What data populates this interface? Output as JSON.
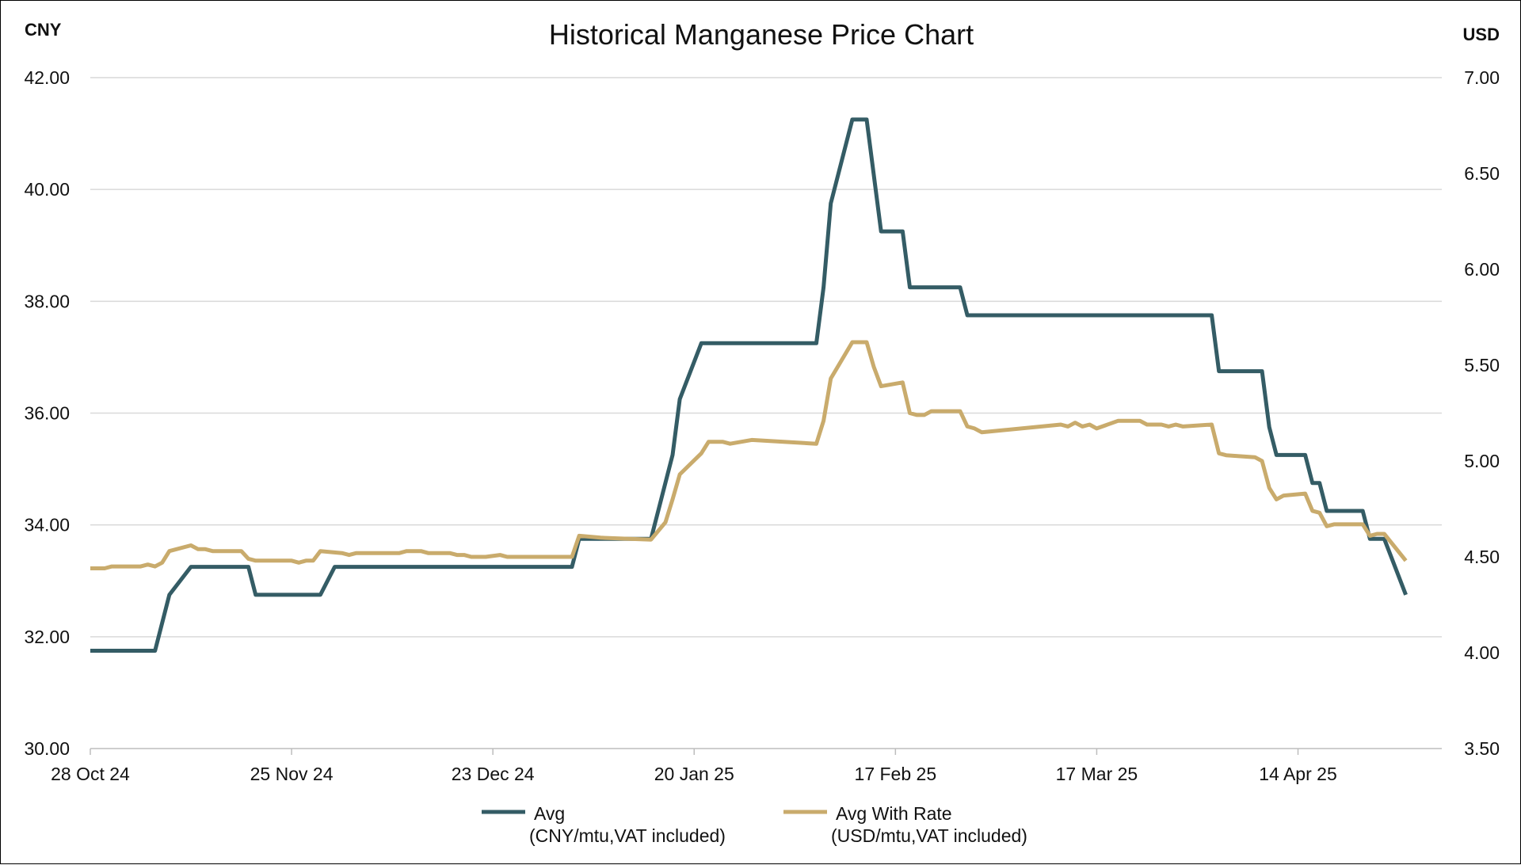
{
  "chart_data": {
    "type": "line",
    "title": "Historical Manganese Price Chart",
    "left_axis": {
      "unit_label": "CNY",
      "ylim": [
        30,
        42
      ],
      "ticks": [
        "30.00",
        "32.00",
        "34.00",
        "36.00",
        "38.00",
        "40.00",
        "42.00"
      ]
    },
    "right_axis": {
      "unit_label": "USD",
      "ylim": [
        3.5,
        7.0
      ],
      "ticks": [
        "3.50",
        "4.00",
        "4.50",
        "5.00",
        "5.50",
        "6.00",
        "6.50",
        "7.00"
      ]
    },
    "x_axis": {
      "range": [
        "2024-10-28",
        "2025-05-04"
      ],
      "ticks": [
        {
          "date": "2024-10-28",
          "label": "28 Oct 24"
        },
        {
          "date": "2024-11-25",
          "label": "25 Nov 24"
        },
        {
          "date": "2024-12-23",
          "label": "23 Dec 24"
        },
        {
          "date": "2025-01-20",
          "label": "20 Jan 25"
        },
        {
          "date": "2025-02-17",
          "label": "17 Feb 25"
        },
        {
          "date": "2025-03-17",
          "label": "17 Mar 25"
        },
        {
          "date": "2025-04-14",
          "label": "14 Apr 25"
        }
      ]
    },
    "grid": true,
    "legend_position": "bottom",
    "series": [
      {
        "name": "Avg",
        "sublabel": "(CNY/mtu,VAT included)",
        "axis": "left",
        "color": "#345c65",
        "points": [
          [
            "2024-10-28",
            31.75
          ],
          [
            "2024-11-06",
            31.75
          ],
          [
            "2024-11-08",
            32.75
          ],
          [
            "2024-11-11",
            33.25
          ],
          [
            "2024-11-19",
            33.25
          ],
          [
            "2024-11-20",
            32.75
          ],
          [
            "2024-11-29",
            32.75
          ],
          [
            "2024-12-01",
            33.25
          ],
          [
            "2025-01-03",
            33.25
          ],
          [
            "2025-01-04",
            33.75
          ],
          [
            "2025-01-14",
            33.75
          ],
          [
            "2025-01-17",
            35.25
          ],
          [
            "2025-01-18",
            36.25
          ],
          [
            "2025-01-21",
            37.25
          ],
          [
            "2025-02-06",
            37.25
          ],
          [
            "2025-02-07",
            38.25
          ],
          [
            "2025-02-08",
            39.75
          ],
          [
            "2025-02-11",
            41.25
          ],
          [
            "2025-02-13",
            41.25
          ],
          [
            "2025-02-15",
            39.25
          ],
          [
            "2025-02-18",
            39.25
          ],
          [
            "2025-02-19",
            38.25
          ],
          [
            "2025-02-26",
            38.25
          ],
          [
            "2025-02-27",
            37.75
          ],
          [
            "2025-04-02",
            37.75
          ],
          [
            "2025-04-03",
            36.75
          ],
          [
            "2025-04-09",
            36.75
          ],
          [
            "2025-04-10",
            35.75
          ],
          [
            "2025-04-11",
            35.25
          ],
          [
            "2025-04-15",
            35.25
          ],
          [
            "2025-04-16",
            34.75
          ],
          [
            "2025-04-17",
            34.75
          ],
          [
            "2025-04-18",
            34.25
          ],
          [
            "2025-04-23",
            34.25
          ],
          [
            "2025-04-24",
            33.75
          ],
          [
            "2025-04-26",
            33.75
          ],
          [
            "2025-04-29",
            32.75
          ]
        ]
      },
      {
        "name": "Avg With Rate",
        "sublabel": "(USD/mtu,VAT included)",
        "axis": "right",
        "color": "#c9ab6c",
        "points": [
          [
            "2024-10-28",
            4.44
          ],
          [
            "2024-10-30",
            4.44
          ],
          [
            "2024-10-31",
            4.45
          ],
          [
            "2024-11-04",
            4.45
          ],
          [
            "2024-11-05",
            4.46
          ],
          [
            "2024-11-06",
            4.45
          ],
          [
            "2024-11-07",
            4.47
          ],
          [
            "2024-11-08",
            4.53
          ],
          [
            "2024-11-11",
            4.56
          ],
          [
            "2024-11-12",
            4.54
          ],
          [
            "2024-11-13",
            4.54
          ],
          [
            "2024-11-14",
            4.53
          ],
          [
            "2024-11-18",
            4.53
          ],
          [
            "2024-11-19",
            4.49
          ],
          [
            "2024-11-20",
            4.48
          ],
          [
            "2024-11-25",
            4.48
          ],
          [
            "2024-11-26",
            4.47
          ],
          [
            "2024-11-27",
            4.48
          ],
          [
            "2024-11-28",
            4.48
          ],
          [
            "2024-11-29",
            4.53
          ],
          [
            "2024-12-02",
            4.52
          ],
          [
            "2024-12-03",
            4.51
          ],
          [
            "2024-12-04",
            4.52
          ],
          [
            "2024-12-10",
            4.52
          ],
          [
            "2024-12-11",
            4.53
          ],
          [
            "2024-12-13",
            4.53
          ],
          [
            "2024-12-14",
            4.52
          ],
          [
            "2024-12-17",
            4.52
          ],
          [
            "2024-12-18",
            4.51
          ],
          [
            "2024-12-19",
            4.51
          ],
          [
            "2024-12-20",
            4.5
          ],
          [
            "2024-12-22",
            4.5
          ],
          [
            "2024-12-24",
            4.51
          ],
          [
            "2024-12-25",
            4.5
          ],
          [
            "2025-01-03",
            4.5
          ],
          [
            "2025-01-04",
            4.61
          ],
          [
            "2025-01-07",
            4.6
          ],
          [
            "2025-01-14",
            4.59
          ],
          [
            "2025-01-16",
            4.68
          ],
          [
            "2025-01-17",
            4.8
          ],
          [
            "2025-01-18",
            4.93
          ],
          [
            "2025-01-21",
            5.04
          ],
          [
            "2025-01-22",
            5.1
          ],
          [
            "2025-01-24",
            5.1
          ],
          [
            "2025-01-25",
            5.09
          ],
          [
            "2025-01-28",
            5.11
          ],
          [
            "2025-02-06",
            5.09
          ],
          [
            "2025-02-07",
            5.21
          ],
          [
            "2025-02-08",
            5.43
          ],
          [
            "2025-02-11",
            5.62
          ],
          [
            "2025-02-13",
            5.62
          ],
          [
            "2025-02-14",
            5.49
          ],
          [
            "2025-02-15",
            5.39
          ],
          [
            "2025-02-18",
            5.41
          ],
          [
            "2025-02-19",
            5.25
          ],
          [
            "2025-02-20",
            5.24
          ],
          [
            "2025-02-21",
            5.24
          ],
          [
            "2025-02-22",
            5.26
          ],
          [
            "2025-02-26",
            5.26
          ],
          [
            "2025-02-27",
            5.18
          ],
          [
            "2025-02-28",
            5.17
          ],
          [
            "2025-03-01",
            5.15
          ],
          [
            "2025-03-12",
            5.19
          ],
          [
            "2025-03-13",
            5.18
          ],
          [
            "2025-03-14",
            5.2
          ],
          [
            "2025-03-15",
            5.18
          ],
          [
            "2025-03-16",
            5.19
          ],
          [
            "2025-03-17",
            5.17
          ],
          [
            "2025-03-20",
            5.21
          ],
          [
            "2025-03-23",
            5.21
          ],
          [
            "2025-03-24",
            5.19
          ],
          [
            "2025-03-26",
            5.19
          ],
          [
            "2025-03-27",
            5.18
          ],
          [
            "2025-03-28",
            5.19
          ],
          [
            "2025-03-29",
            5.18
          ],
          [
            "2025-04-02",
            5.19
          ],
          [
            "2025-04-03",
            5.04
          ],
          [
            "2025-04-04",
            5.03
          ],
          [
            "2025-04-08",
            5.02
          ],
          [
            "2025-04-09",
            5.0
          ],
          [
            "2025-04-10",
            4.86
          ],
          [
            "2025-04-11",
            4.8
          ],
          [
            "2025-04-12",
            4.82
          ],
          [
            "2025-04-15",
            4.83
          ],
          [
            "2025-04-16",
            4.74
          ],
          [
            "2025-04-17",
            4.73
          ],
          [
            "2025-04-18",
            4.66
          ],
          [
            "2025-04-19",
            4.67
          ],
          [
            "2025-04-23",
            4.67
          ],
          [
            "2025-04-24",
            4.61
          ],
          [
            "2025-04-25",
            4.62
          ],
          [
            "2025-04-26",
            4.62
          ],
          [
            "2025-04-29",
            4.48
          ]
        ]
      }
    ]
  }
}
